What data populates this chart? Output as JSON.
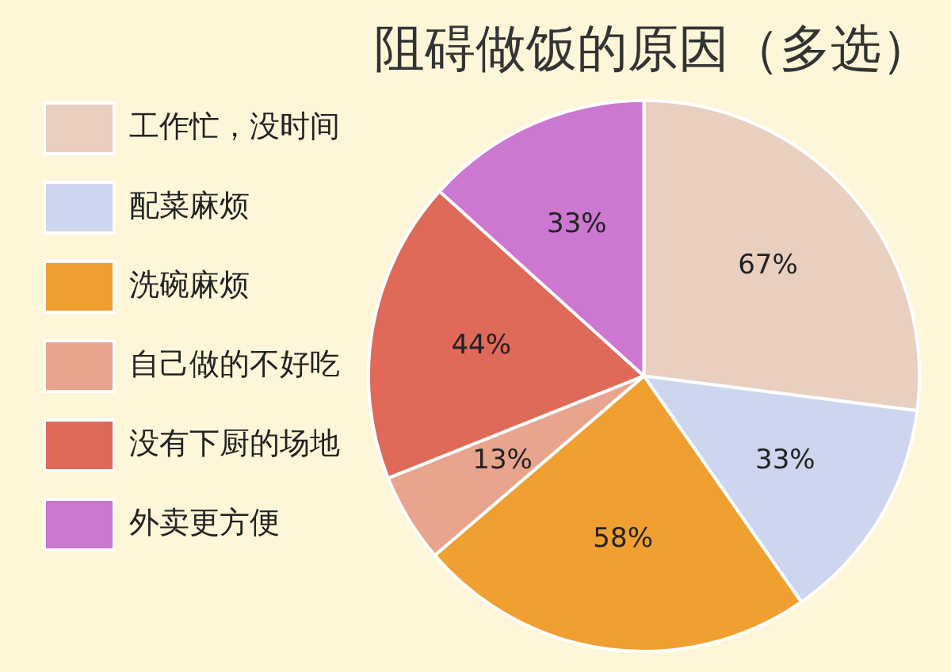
{
  "chart_data": {
    "type": "pie",
    "title": "阻碍做饭的原因（多选）",
    "categories": [
      "工作忙，没时间",
      "配菜麻烦",
      "洗碗麻烦",
      "自己做的不好吃",
      "没有下厨的场地",
      "外卖更方便"
    ],
    "values": [
      67,
      33,
      58,
      13,
      44,
      33
    ],
    "value_labels": [
      "67%",
      "33%",
      "58%",
      "13%",
      "44%",
      "33%"
    ],
    "colors": [
      "#e8cfc0",
      "#cdd6ee",
      "#f0a030",
      "#e8a48c",
      "#e06a5a",
      "#cc77d0"
    ],
    "legend": "left"
  }
}
